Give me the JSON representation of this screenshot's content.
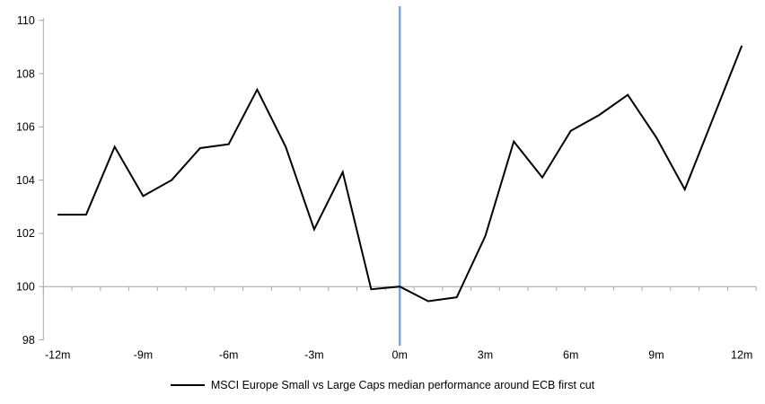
{
  "chart_data": {
    "type": "line",
    "title": "",
    "x": [
      -12,
      -11,
      -10,
      -9,
      -8,
      -7,
      -6,
      -5,
      -4,
      -3,
      -2,
      -1,
      0,
      1,
      2,
      3,
      4,
      5,
      6,
      7,
      8,
      9,
      10,
      11,
      12
    ],
    "series": [
      {
        "name": "MSCI Europe Small vs Large Caps median performance around ECB first cut",
        "color": "#000000",
        "values": [
          102.7,
          102.7,
          105.25,
          103.4,
          104.0,
          105.2,
          105.35,
          107.4,
          105.25,
          102.15,
          104.3,
          99.9,
          100.0,
          99.45,
          99.6,
          101.9,
          105.45,
          104.1,
          105.85,
          106.45,
          107.2,
          105.6,
          103.65,
          106.35,
          109.05
        ]
      }
    ],
    "xlabel": "",
    "ylabel": "",
    "ylim": [
      98,
      110
    ],
    "xlim": [
      -12.5,
      12.5
    ],
    "y_ticks": [
      98,
      100,
      102,
      104,
      106,
      108,
      110
    ],
    "x_tick_values": [
      -12,
      -9,
      -6,
      -3,
      0,
      3,
      6,
      9,
      12
    ],
    "x_tick_labels": [
      "-12m",
      "-9m",
      "-6m",
      "-3m",
      "0m",
      "3m",
      "6m",
      "9m",
      "12m"
    ],
    "x_minor_tick_step": 1,
    "x_axis_cross_y": 100,
    "event_line_x": 0,
    "grid": "off",
    "legend_position": "bottom",
    "colors": {
      "series": "#000000",
      "event_line": "#7da5d2",
      "axis": "#a6a6a6"
    }
  }
}
